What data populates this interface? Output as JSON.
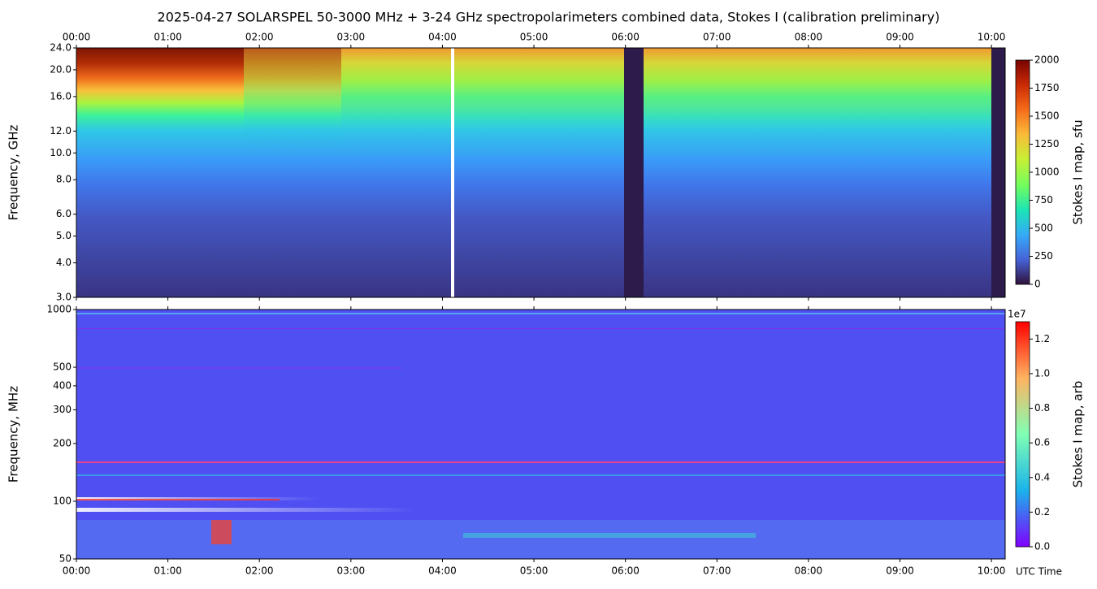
{
  "chart_data": [
    {
      "type": "spectrogram",
      "title": "2025-04-27  SOLARSPEL  50-3000 MHz  +  3-24 GHz  spectropolarimeters combined data,  Stokes I  (calibration preliminary)",
      "ylabel": "Frequency, GHz",
      "xaxis_side": "top",
      "xlim": [
        0,
        10.15
      ],
      "xticks": [
        {
          "value": 0,
          "label": "00:00"
        },
        {
          "value": 1,
          "label": "01:00"
        },
        {
          "value": 2,
          "label": "02:00"
        },
        {
          "value": 3,
          "label": "03:00"
        },
        {
          "value": 4,
          "label": "04:00"
        },
        {
          "value": 5,
          "label": "05:00"
        },
        {
          "value": 6,
          "label": "06:00"
        },
        {
          "value": 7,
          "label": "07:00"
        },
        {
          "value": 8,
          "label": "08:00"
        },
        {
          "value": 9,
          "label": "09:00"
        },
        {
          "value": 10,
          "label": "10:00"
        }
      ],
      "log_y": true,
      "ylim": [
        3,
        24
      ],
      "yticks": [
        {
          "value": 3,
          "label": "3.0"
        },
        {
          "value": 4,
          "label": "4.0"
        },
        {
          "value": 5,
          "label": "5.0"
        },
        {
          "value": 6,
          "label": "6.0"
        },
        {
          "value": 8,
          "label": "8.0"
        },
        {
          "value": 10,
          "label": "10.0"
        },
        {
          "value": 12,
          "label": "12.0"
        },
        {
          "value": 16,
          "label": "16.0"
        },
        {
          "value": 20,
          "label": "20.0"
        },
        {
          "value": 24,
          "label": "24.0"
        }
      ],
      "colormap": "turbo",
      "colorbar": {
        "label": "Stokes I map, sfu",
        "lim": [
          0,
          2000
        ],
        "ticks": [
          0,
          250,
          500,
          750,
          1000,
          1250,
          1500,
          1750,
          2000
        ]
      }
    },
    {
      "type": "spectrogram",
      "ylabel": "Frequency, MHz",
      "xlabel": "UTC Time",
      "xaxis_side": "bottom",
      "xlim": [
        0,
        10.15
      ],
      "xticks": [
        {
          "value": 0,
          "label": "00:00"
        },
        {
          "value": 1,
          "label": "01:00"
        },
        {
          "value": 2,
          "label": "02:00"
        },
        {
          "value": 3,
          "label": "03:00"
        },
        {
          "value": 4,
          "label": "04:00"
        },
        {
          "value": 5,
          "label": "05:00"
        },
        {
          "value": 6,
          "label": "06:00"
        },
        {
          "value": 7,
          "label": "07:00"
        },
        {
          "value": 8,
          "label": "08:00"
        },
        {
          "value": 9,
          "label": "09:00"
        },
        {
          "value": 10,
          "label": "10:00"
        }
      ],
      "log_y": true,
      "ylim": [
        50,
        1000
      ],
      "yticks": [
        50,
        100,
        200,
        300,
        400,
        500,
        1000
      ],
      "colormap": "rainbow",
      "colorbar": {
        "label": "Stokes I map, arb",
        "offset_label": "1e7",
        "lim": [
          0,
          1.3
        ],
        "ticks": [
          {
            "value": 0,
            "label": "0.0"
          },
          {
            "value": 0.2,
            "label": "0.2"
          },
          {
            "value": 0.4,
            "label": "0.4"
          },
          {
            "value": 0.6,
            "label": "0.6"
          },
          {
            "value": 0.8,
            "label": "0.8"
          },
          {
            "value": 1,
            "label": "1.0"
          },
          {
            "value": 1.2,
            "label": "1.2"
          }
        ]
      }
    }
  ]
}
